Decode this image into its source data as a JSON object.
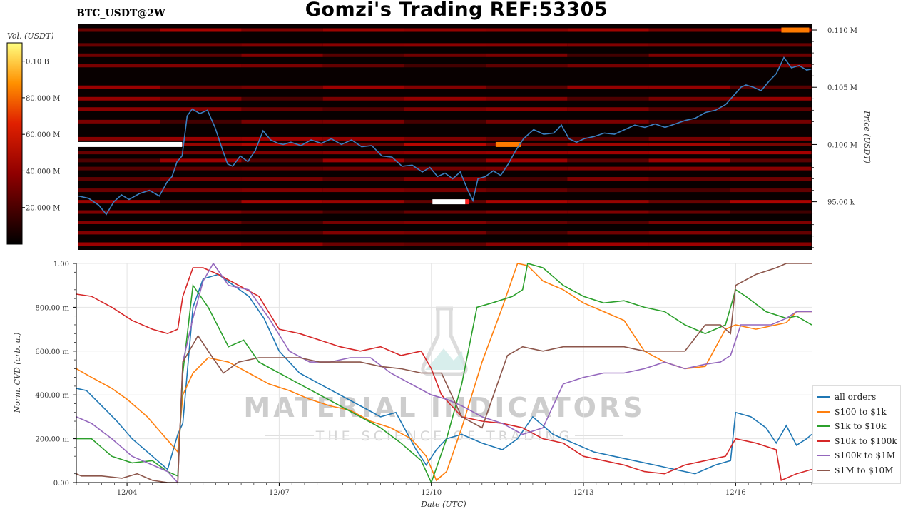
{
  "header": {
    "title": "Gomzi's Trading REF:53305",
    "pair": "BTC_USDT@2W"
  },
  "watermark": {
    "main": "MATERIAL INDICATORS",
    "sub": "THE SCIENCE OF TRADING"
  },
  "colors": {
    "heatmap_low": "#000000",
    "heatmap_mid": "#c00000",
    "heatmap_high": "#ffff66",
    "price_line": "#3a7fc0"
  },
  "chart_data": [
    {
      "type": "heatmap",
      "name": "orderbook-heatmap",
      "colorbar_label": "Vol. (USDT)",
      "colorbar_ticks": [
        "0.10 B",
        "80.000 M",
        "60.000 M",
        "40.000 M",
        "20.000 M"
      ],
      "colorbar_tick_values": [
        100000000,
        80000000,
        60000000,
        40000000,
        20000000
      ],
      "colorbar_range": [
        0,
        110000000
      ],
      "ylabel": "Price (USDT)",
      "y_ticks": [
        "0.110 M",
        "0.105 M",
        "0.100 M",
        "95.00 k"
      ],
      "y_tick_values": [
        110000,
        105000,
        100000,
        95000
      ],
      "ylim": [
        90800,
        110500
      ],
      "x_range_days": [
        0,
        14.5
      ],
      "liquidity_bands": [
        {
          "price": 110000,
          "intensity": 0.55
        },
        {
          "price": 108700,
          "intensity": 0.35
        },
        {
          "price": 107800,
          "intensity": 0.3
        },
        {
          "price": 106900,
          "intensity": 0.3
        },
        {
          "price": 105000,
          "intensity": 0.45
        },
        {
          "price": 104000,
          "intensity": 0.4
        },
        {
          "price": 103100,
          "intensity": 0.35
        },
        {
          "price": 102000,
          "intensity": 0.3
        },
        {
          "price": 100500,
          "intensity": 0.45
        },
        {
          "price": 100000,
          "intensity": 0.6
        },
        {
          "price": 99300,
          "intensity": 0.5
        },
        {
          "price": 98600,
          "intensity": 0.45
        },
        {
          "price": 97900,
          "intensity": 0.4
        },
        {
          "price": 97000,
          "intensity": 0.3
        },
        {
          "price": 96000,
          "intensity": 0.3
        },
        {
          "price": 95000,
          "intensity": 0.55
        },
        {
          "price": 94100,
          "intensity": 0.3
        },
        {
          "price": 93200,
          "intensity": 0.3
        },
        {
          "price": 92300,
          "intensity": 0.3
        },
        {
          "price": 91300,
          "intensity": 0.5
        }
      ],
      "highlights": [
        {
          "price": 100000,
          "start_day": 0,
          "end_day": 2.05,
          "color": "#ffffff"
        },
        {
          "price": 100000,
          "start_day": 8.25,
          "end_day": 8.75,
          "color": "#ff7a00"
        },
        {
          "price": 95000,
          "start_day": 7.0,
          "end_day": 7.65,
          "color": "#ffffff"
        },
        {
          "price": 95000,
          "start_day": 7.65,
          "end_day": 7.72,
          "color": "#ff2020"
        },
        {
          "price": 110000,
          "start_day": 13.9,
          "end_day": 14.45,
          "color": "#ff7a00"
        }
      ],
      "price_series": {
        "name": "price",
        "x_days": [
          0,
          0.2,
          0.4,
          0.55,
          0.7,
          0.85,
          1.0,
          1.2,
          1.4,
          1.6,
          1.75,
          1.85,
          1.95,
          2.05,
          2.15,
          2.25,
          2.4,
          2.55,
          2.7,
          2.85,
          2.95,
          3.05,
          3.2,
          3.35,
          3.5,
          3.65,
          3.8,
          3.95,
          4.05,
          4.2,
          4.4,
          4.6,
          4.8,
          5.0,
          5.2,
          5.4,
          5.6,
          5.8,
          6.0,
          6.2,
          6.4,
          6.6,
          6.8,
          6.95,
          7.1,
          7.25,
          7.4,
          7.55,
          7.7,
          7.8,
          7.9,
          8.05,
          8.2,
          8.35,
          8.5,
          8.65,
          8.8,
          9.0,
          9.2,
          9.4,
          9.55,
          9.7,
          9.85,
          10.0,
          10.2,
          10.4,
          10.6,
          10.8,
          11.0,
          11.2,
          11.4,
          11.6,
          11.8,
          12.0,
          12.2,
          12.4,
          12.6,
          12.8,
          13.0,
          13.1,
          13.2,
          13.35,
          13.5,
          13.65,
          13.8,
          13.95,
          14.1,
          14.25,
          14.4,
          14.5
        ],
        "values": [
          95500,
          95300,
          94700,
          93900,
          95000,
          95600,
          95200,
          95700,
          96000,
          95500,
          96700,
          97200,
          98500,
          99000,
          102500,
          103100,
          102700,
          103000,
          101500,
          99500,
          98300,
          98100,
          99000,
          98500,
          99500,
          101200,
          100400,
          100100,
          100000,
          100200,
          99900,
          100400,
          100100,
          100500,
          100000,
          100400,
          99800,
          99900,
          99000,
          98900,
          98100,
          98200,
          97600,
          98000,
          97200,
          97500,
          97000,
          97600,
          96000,
          95100,
          97000,
          97200,
          97700,
          97300,
          98300,
          99500,
          100500,
          101300,
          100900,
          101000,
          101700,
          100500,
          100200,
          100500,
          100700,
          101000,
          100900,
          101300,
          101700,
          101500,
          101800,
          101500,
          101800,
          102100,
          102300,
          102800,
          103000,
          103500,
          104500,
          105000,
          105200,
          105000,
          104700,
          105500,
          106200,
          107600,
          106700,
          106900,
          106500,
          106600
        ]
      }
    },
    {
      "type": "line",
      "name": "cvd-chart",
      "xlabel": "Date (UTC)",
      "ylabel": "Norm. CVD (arb. u.)",
      "ylim": [
        0,
        1
      ],
      "y_ticks": [
        "1.00",
        "800.00 m",
        "600.00 m",
        "400.00 m",
        "200.00 m",
        "0.00"
      ],
      "y_tick_values": [
        1.0,
        0.8,
        0.6,
        0.4,
        0.2,
        0.0
      ],
      "x_range_days": [
        0,
        14.5
      ],
      "x_ticks": [
        "12/04",
        "12/07",
        "12/10",
        "12/13",
        "12/16"
      ],
      "x_tick_days": [
        1.0,
        4.0,
        7.0,
        10.0,
        13.0
      ],
      "legend_position": "bottom-right",
      "series": [
        {
          "name": "all orders",
          "color": "#1f77b4",
          "x": [
            0,
            0.2,
            0.5,
            0.8,
            1.1,
            1.5,
            1.8,
            2.0,
            2.1,
            2.3,
            2.5,
            2.8,
            3.1,
            3.4,
            3.7,
            4.0,
            4.4,
            4.8,
            5.2,
            5.6,
            6.0,
            6.3,
            6.7,
            6.9,
            7.1,
            7.3,
            7.6,
            8.0,
            8.4,
            8.7,
            9.0,
            9.4,
            9.8,
            10.2,
            10.6,
            11.0,
            11.4,
            11.8,
            12.2,
            12.6,
            12.9,
            13.0,
            13.3,
            13.6,
            13.8,
            14.0,
            14.2,
            14.4,
            14.5
          ],
          "values": [
            0.43,
            0.42,
            0.35,
            0.28,
            0.2,
            0.12,
            0.06,
            0.22,
            0.27,
            0.8,
            0.93,
            0.95,
            0.9,
            0.85,
            0.75,
            0.6,
            0.5,
            0.45,
            0.4,
            0.35,
            0.3,
            0.32,
            0.15,
            0.08,
            0.15,
            0.2,
            0.22,
            0.18,
            0.15,
            0.2,
            0.3,
            0.22,
            0.18,
            0.14,
            0.12,
            0.1,
            0.08,
            0.06,
            0.04,
            0.08,
            0.1,
            0.32,
            0.3,
            0.25,
            0.18,
            0.26,
            0.17,
            0.2,
            0.22
          ]
        },
        {
          "name": "$100 to $1k",
          "color": "#ff7f0e",
          "x": [
            0,
            0.3,
            0.7,
            1.0,
            1.4,
            1.7,
            2.0,
            2.1,
            2.3,
            2.6,
            3.0,
            3.4,
            3.8,
            4.2,
            4.6,
            5.0,
            5.4,
            5.8,
            6.2,
            6.6,
            6.9,
            7.1,
            7.3,
            7.6,
            8.0,
            8.4,
            8.7,
            8.9,
            9.2,
            9.6,
            10.0,
            10.4,
            10.8,
            11.2,
            11.6,
            12.0,
            12.4,
            12.8,
            13.0,
            13.4,
            13.8,
            14.0,
            14.2,
            14.5
          ],
          "values": [
            0.52,
            0.48,
            0.43,
            0.38,
            0.3,
            0.22,
            0.14,
            0.4,
            0.5,
            0.57,
            0.55,
            0.5,
            0.45,
            0.42,
            0.38,
            0.35,
            0.33,
            0.28,
            0.25,
            0.2,
            0.12,
            0.01,
            0.05,
            0.25,
            0.55,
            0.8,
            1.0,
            0.99,
            0.92,
            0.88,
            0.82,
            0.78,
            0.74,
            0.6,
            0.55,
            0.52,
            0.53,
            0.7,
            0.72,
            0.7,
            0.72,
            0.73,
            0.78,
            0.78
          ]
        },
        {
          "name": "$1k to $10k",
          "color": "#2ca02c",
          "x": [
            0,
            0.3,
            0.7,
            1.1,
            1.5,
            1.8,
            2.0,
            2.1,
            2.3,
            2.6,
            3.0,
            3.3,
            3.6,
            4.0,
            4.4,
            4.8,
            5.2,
            5.6,
            6.0,
            6.4,
            6.8,
            7.0,
            7.3,
            7.6,
            7.9,
            8.2,
            8.6,
            8.8,
            8.9,
            9.2,
            9.6,
            10.0,
            10.4,
            10.8,
            11.2,
            11.6,
            12.0,
            12.4,
            12.8,
            13.0,
            13.2,
            13.6,
            14.0,
            14.2,
            14.5
          ],
          "values": [
            0.2,
            0.2,
            0.12,
            0.09,
            0.1,
            0.05,
            0.03,
            0.5,
            0.9,
            0.8,
            0.62,
            0.65,
            0.55,
            0.5,
            0.45,
            0.4,
            0.35,
            0.3,
            0.25,
            0.18,
            0.1,
            0.0,
            0.2,
            0.45,
            0.8,
            0.82,
            0.85,
            0.88,
            1.0,
            0.98,
            0.9,
            0.85,
            0.82,
            0.83,
            0.8,
            0.78,
            0.72,
            0.68,
            0.72,
            0.88,
            0.85,
            0.78,
            0.75,
            0.76,
            0.72
          ]
        },
        {
          "name": "$10k to $100k",
          "color": "#d62728",
          "x": [
            0,
            0.3,
            0.7,
            1.1,
            1.5,
            1.8,
            2.0,
            2.1,
            2.3,
            2.5,
            2.8,
            3.2,
            3.6,
            4.0,
            4.4,
            4.8,
            5.2,
            5.6,
            6.0,
            6.4,
            6.8,
            7.0,
            7.2,
            7.4,
            7.6,
            8.0,
            8.4,
            8.8,
            9.2,
            9.6,
            10.0,
            10.4,
            10.8,
            11.2,
            11.6,
            12.0,
            12.4,
            12.8,
            13.0,
            13.4,
            13.8,
            13.9,
            14.0,
            14.2,
            14.5
          ],
          "values": [
            0.86,
            0.85,
            0.8,
            0.74,
            0.7,
            0.68,
            0.7,
            0.85,
            0.98,
            0.98,
            0.95,
            0.9,
            0.85,
            0.7,
            0.68,
            0.65,
            0.62,
            0.6,
            0.62,
            0.58,
            0.6,
            0.52,
            0.4,
            0.35,
            0.3,
            0.28,
            0.27,
            0.25,
            0.2,
            0.18,
            0.12,
            0.1,
            0.08,
            0.05,
            0.04,
            0.08,
            0.1,
            0.12,
            0.2,
            0.18,
            0.15,
            0.01,
            0.02,
            0.04,
            0.06
          ]
        },
        {
          "name": "$100k to $1M",
          "color": "#9467bd",
          "x": [
            0,
            0.3,
            0.7,
            1.1,
            1.5,
            1.8,
            2.0,
            2.1,
            2.3,
            2.5,
            2.7,
            3.0,
            3.4,
            3.8,
            4.2,
            4.6,
            5.0,
            5.4,
            5.8,
            6.2,
            6.6,
            7.0,
            7.3,
            7.6,
            8.0,
            8.4,
            8.8,
            9.2,
            9.6,
            10.0,
            10.4,
            10.8,
            11.2,
            11.6,
            12.0,
            12.4,
            12.7,
            12.9,
            13.1,
            13.4,
            13.7,
            14.0,
            14.2,
            14.5
          ],
          "values": [
            0.3,
            0.27,
            0.2,
            0.12,
            0.08,
            0.05,
            0.0,
            0.55,
            0.75,
            0.92,
            1.0,
            0.9,
            0.88,
            0.75,
            0.6,
            0.55,
            0.55,
            0.57,
            0.57,
            0.5,
            0.45,
            0.4,
            0.38,
            0.35,
            0.3,
            0.27,
            0.22,
            0.25,
            0.45,
            0.48,
            0.5,
            0.5,
            0.52,
            0.55,
            0.52,
            0.54,
            0.55,
            0.58,
            0.72,
            0.72,
            0.72,
            0.75,
            0.78,
            0.78
          ]
        },
        {
          "name": "$1M to $10M",
          "color": "#8c564b",
          "x": [
            0,
            0.1,
            0.5,
            0.9,
            1.2,
            1.5,
            1.8,
            2.0,
            2.1,
            2.4,
            2.6,
            2.9,
            3.2,
            3.6,
            4.0,
            4.4,
            4.8,
            5.2,
            5.6,
            6.0,
            6.4,
            6.8,
            7.2,
            7.6,
            8.0,
            8.5,
            8.8,
            9.2,
            9.6,
            10.0,
            10.4,
            10.8,
            11.2,
            11.6,
            12.0,
            12.4,
            12.7,
            12.9,
            13.0,
            13.4,
            13.8,
            14.0,
            14.5
          ],
          "values": [
            0.04,
            0.03,
            0.03,
            0.02,
            0.04,
            0.01,
            0.0,
            0.0,
            0.55,
            0.67,
            0.6,
            0.5,
            0.55,
            0.57,
            0.57,
            0.57,
            0.55,
            0.55,
            0.55,
            0.53,
            0.52,
            0.5,
            0.5,
            0.3,
            0.25,
            0.58,
            0.62,
            0.6,
            0.62,
            0.62,
            0.62,
            0.62,
            0.6,
            0.6,
            0.6,
            0.72,
            0.72,
            0.68,
            0.9,
            0.95,
            0.98,
            1.0,
            1.0
          ]
        }
      ]
    }
  ]
}
